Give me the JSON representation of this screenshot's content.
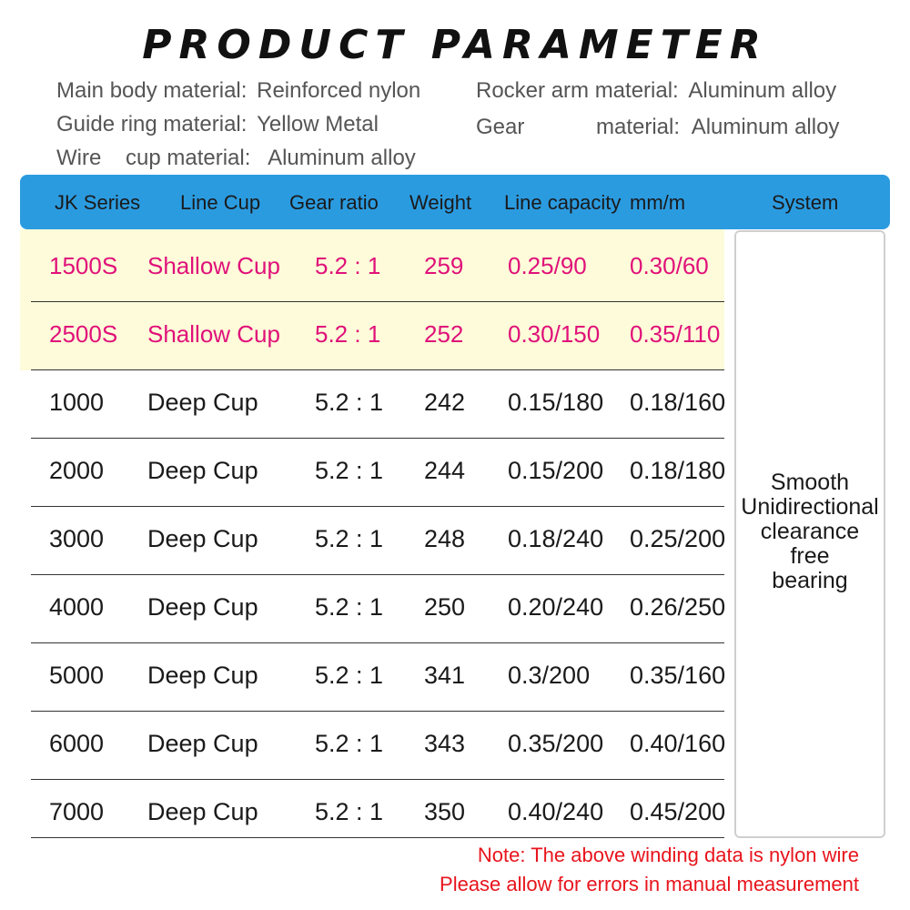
{
  "title": "PRODUCT PARAMETER",
  "specs": {
    "main_body": {
      "key": "Main body material:",
      "value": "Reinforced nylon"
    },
    "guide_ring": {
      "key": "Guide ring material:",
      "value": "Yellow Metal"
    },
    "wire_cup": {
      "key": "Wire    cup material:",
      "value": "Aluminum alloy"
    },
    "rocker_arm": {
      "key": "Rocker arm material:",
      "value": "Aluminum alloy"
    },
    "gear_word": "Gear",
    "gear": {
      "key": "material:",
      "value": "Aluminum alloy"
    }
  },
  "table": {
    "headers": {
      "series": "JK  Series",
      "cup": "Line Cup",
      "gear": "Gear  ratio",
      "weight": "Weight",
      "capacity": "Line capacity",
      "mm": "mm/m",
      "system": "System"
    },
    "rows": [
      {
        "series": "1500S",
        "cup": "Shallow Cup",
        "gear": "5.2 : 1",
        "weight": "259",
        "capacity": "0.25/90",
        "mm": "0.30/60"
      },
      {
        "series": "2500S",
        "cup": "Shallow Cup",
        "gear": "5.2 : 1",
        "weight": "252",
        "capacity": "0.30/150",
        "mm": "0.35/110"
      },
      {
        "series": "1000",
        "cup": "Deep Cup",
        "gear": "5.2 : 1",
        "weight": "242",
        "capacity": "0.15/180",
        "mm": "0.18/160"
      },
      {
        "series": "2000",
        "cup": "Deep Cup",
        "gear": "5.2 : 1",
        "weight": "244",
        "capacity": "0.15/200",
        "mm": "0.18/180"
      },
      {
        "series": "3000",
        "cup": "Deep Cup",
        "gear": "5.2 : 1",
        "weight": "248",
        "capacity": "0.18/240",
        "mm": "0.25/200"
      },
      {
        "series": "4000",
        "cup": "Deep Cup",
        "gear": "5.2 : 1",
        "weight": "250",
        "capacity": "0.20/240",
        "mm": "0.26/250"
      },
      {
        "series": "5000",
        "cup": "Deep Cup",
        "gear": "5.2 : 1",
        "weight": "341",
        "capacity": "0.3/200",
        "mm": "0.35/160"
      },
      {
        "series": "6000",
        "cup": "Deep Cup",
        "gear": "5.2 : 1",
        "weight": "343",
        "capacity": "0.35/200",
        "mm": "0.40/160"
      },
      {
        "series": "7000",
        "cup": "Deep Cup",
        "gear": "5.2 : 1",
        "weight": "350",
        "capacity": "0.40/240",
        "mm": "0.45/200"
      }
    ],
    "system": [
      "Smooth",
      "Unidirectional",
      "clearance",
      "free",
      "bearing"
    ]
  },
  "notes": [
    "Note: The above winding data is nylon wire",
    "Please allow for errors in manual measurement"
  ],
  "colors": {
    "header_bg": "#2b9be0",
    "highlight_bg": "#fdfbd9",
    "highlight_text": "#e0117a",
    "note_text": "#e8141c"
  }
}
